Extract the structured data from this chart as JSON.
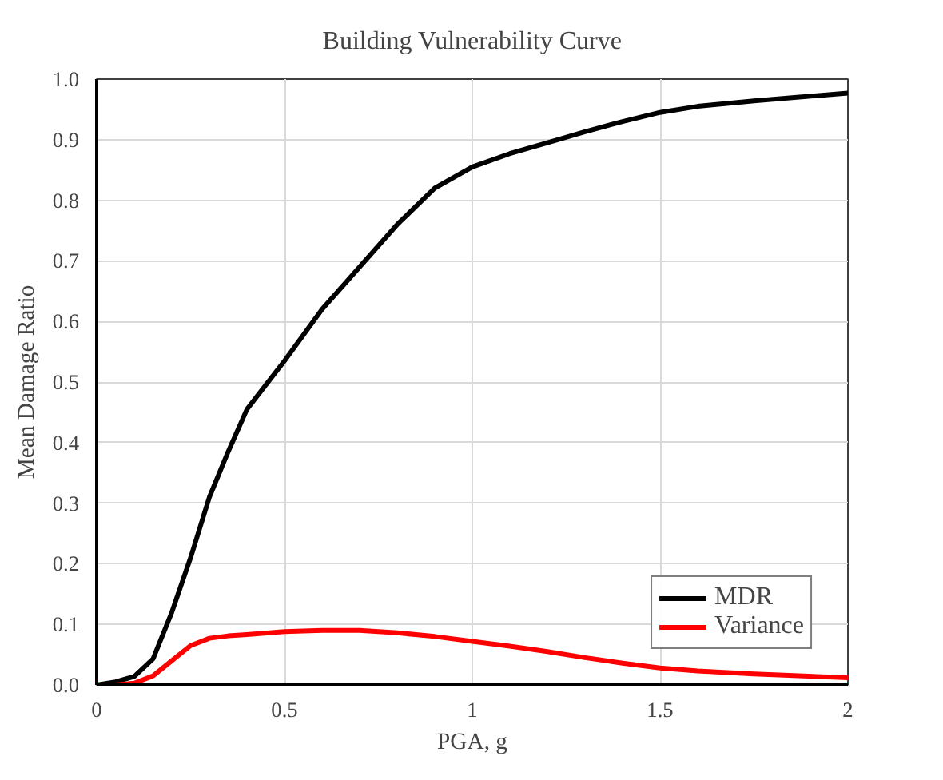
{
  "chart_data": {
    "type": "line",
    "title": "Building Vulnerability Curve",
    "xlabel": "PGA, g",
    "ylabel": "Mean Damage Ratio",
    "x": [
      0,
      0.05,
      0.1,
      0.15,
      0.2,
      0.25,
      0.3,
      0.35,
      0.4,
      0.5,
      0.6,
      0.7,
      0.8,
      0.9,
      1.0,
      1.1,
      1.2,
      1.3,
      1.4,
      1.5,
      1.6,
      1.75,
      2.0
    ],
    "series": [
      {
        "name": "MDR",
        "color": "#000000",
        "values": [
          0,
          0.005,
          0.014,
          0.043,
          0.12,
          0.21,
          0.31,
          0.385,
          0.455,
          0.535,
          0.62,
          0.69,
          0.76,
          0.82,
          0.855,
          0.877,
          0.895,
          0.913,
          0.93,
          0.945,
          0.955,
          0.964,
          0.977
        ]
      },
      {
        "name": "Variance",
        "color": "#ff0000",
        "values": [
          0,
          0,
          0.003,
          0.015,
          0.04,
          0.065,
          0.077,
          0.081,
          0.083,
          0.088,
          0.09,
          0.09,
          0.086,
          0.08,
          0.072,
          0.064,
          0.055,
          0.045,
          0.036,
          0.028,
          0.023,
          0.018,
          0.012
        ]
      }
    ],
    "xlim": [
      0,
      2
    ],
    "xticks": [
      0,
      0.5,
      1,
      1.5,
      2
    ],
    "ylim": [
      0,
      1
    ],
    "yticks": [
      {
        "value": 0,
        "label": "0.0"
      },
      0.1,
      0.2,
      0.3,
      0.4,
      0.5,
      0.6,
      0.7,
      0.8,
      0.9,
      {
        "value": 1,
        "label": "1.0"
      }
    ],
    "grid": true,
    "legend": "bottom right",
    "marker": "none",
    "line_style": "solid"
  }
}
